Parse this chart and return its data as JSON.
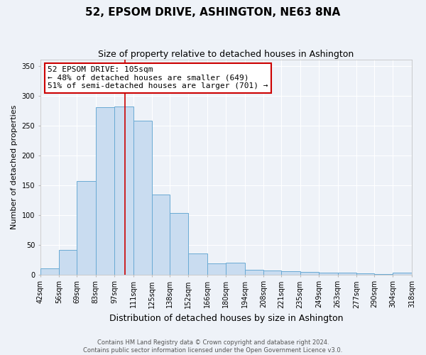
{
  "title": "52, EPSOM DRIVE, ASHINGTON, NE63 8NA",
  "subtitle": "Size of property relative to detached houses in Ashington",
  "xlabel": "Distribution of detached houses by size in Ashington",
  "ylabel": "Number of detached properties",
  "bin_labels": [
    "42sqm",
    "56sqm",
    "69sqm",
    "83sqm",
    "97sqm",
    "111sqm",
    "125sqm",
    "138sqm",
    "152sqm",
    "166sqm",
    "180sqm",
    "194sqm",
    "208sqm",
    "221sqm",
    "235sqm",
    "249sqm",
    "263sqm",
    "277sqm",
    "290sqm",
    "304sqm",
    "318sqm"
  ],
  "bin_edges": [
    42,
    56,
    69,
    83,
    97,
    111,
    125,
    138,
    152,
    166,
    180,
    194,
    208,
    221,
    235,
    249,
    263,
    277,
    290,
    304,
    318
  ],
  "bar_heights": [
    10,
    41,
    157,
    281,
    282,
    258,
    134,
    103,
    35,
    18,
    20,
    8,
    6,
    5,
    4,
    3,
    3,
    2,
    1,
    3
  ],
  "bar_color": "#c9dcf0",
  "bar_edge_color": "#6aaad4",
  "vline_x": 105,
  "vline_color": "#cc0000",
  "ylim": [
    0,
    360
  ],
  "yticks": [
    0,
    50,
    100,
    150,
    200,
    250,
    300,
    350
  ],
  "annotation_title": "52 EPSOM DRIVE: 105sqm",
  "annotation_line1": "← 48% of detached houses are smaller (649)",
  "annotation_line2": "51% of semi-detached houses are larger (701) →",
  "annotation_box_color": "#ffffff",
  "annotation_box_edge": "#cc0000",
  "footer_line1": "Contains HM Land Registry data © Crown copyright and database right 2024.",
  "footer_line2": "Contains public sector information licensed under the Open Government Licence v3.0.",
  "background_color": "#eef2f8",
  "title_fontsize": 11,
  "subtitle_fontsize": 9,
  "ylabel_fontsize": 8,
  "xlabel_fontsize": 9,
  "tick_fontsize": 7,
  "annotation_fontsize": 8,
  "footer_fontsize": 6
}
